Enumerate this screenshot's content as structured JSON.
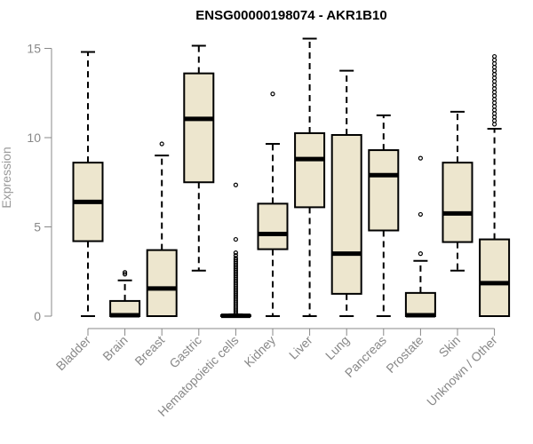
{
  "chart_data": {
    "type": "boxplot",
    "title": "ENSG00000198074 - AKR1B10",
    "xlabel": "",
    "ylabel": "Expression",
    "ylim": [
      0,
      15.5
    ],
    "yticks": [
      0,
      5,
      10,
      15
    ],
    "grid": false,
    "colors": {
      "box_fill": "#EDE6CE",
      "box_stroke": "#000000",
      "median": "#000000",
      "axis_text": "#888888"
    },
    "categories": [
      "Bladder",
      "Brain",
      "Breast",
      "Gastric",
      "Hematopoietic cells",
      "Kidney",
      "Liver",
      "Lung",
      "Pancreas",
      "Prostate",
      "Skin",
      "Unknown / Other"
    ],
    "boxes": [
      {
        "category": "Bladder",
        "whisker_low": 0,
        "q1": 4.2,
        "median": 6.4,
        "q3": 8.6,
        "whisker_high": 14.8,
        "outliers": []
      },
      {
        "category": "Brain",
        "whisker_low": 0,
        "q1": 0,
        "median": 0.05,
        "q3": 0.85,
        "whisker_high": 2.0,
        "outliers": [
          2.35,
          2.45
        ]
      },
      {
        "category": "Breast",
        "whisker_low": 0,
        "q1": 0,
        "median": 1.55,
        "q3": 3.7,
        "whisker_high": 9.0,
        "outliers": [
          9.65
        ]
      },
      {
        "category": "Gastric",
        "whisker_low": 2.55,
        "q1": 7.5,
        "median": 11.05,
        "q3": 13.6,
        "whisker_high": 15.15,
        "outliers": []
      },
      {
        "category": "Hematopoietic cells",
        "whisker_low": 0,
        "q1": 0,
        "median": 0.02,
        "q3": 0.05,
        "whisker_high": 0.1,
        "outliers": [
          0.15,
          0.25,
          0.35,
          0.45,
          0.55,
          0.65,
          0.75,
          0.85,
          0.95,
          1.05,
          1.15,
          1.25,
          1.35,
          1.45,
          1.55,
          1.65,
          1.75,
          1.85,
          1.95,
          2.05,
          2.15,
          2.25,
          2.35,
          2.45,
          2.55,
          2.65,
          2.75,
          2.85,
          2.95,
          3.05,
          3.15,
          3.25,
          3.4,
          3.55,
          4.3,
          7.35
        ]
      },
      {
        "category": "Kidney",
        "whisker_low": 0,
        "q1": 3.75,
        "median": 4.6,
        "q3": 6.3,
        "whisker_high": 9.65,
        "outliers": [
          12.45
        ]
      },
      {
        "category": "Liver",
        "whisker_low": 0,
        "q1": 6.1,
        "median": 8.8,
        "q3": 10.25,
        "whisker_high": 15.55,
        "outliers": []
      },
      {
        "category": "Lung",
        "whisker_low": 0,
        "q1": 1.25,
        "median": 3.5,
        "q3": 10.15,
        "whisker_high": 13.75,
        "outliers": []
      },
      {
        "category": "Pancreas",
        "whisker_low": 0,
        "q1": 4.8,
        "median": 7.9,
        "q3": 9.3,
        "whisker_high": 11.25,
        "outliers": []
      },
      {
        "category": "Prostate",
        "whisker_low": 0,
        "q1": 0,
        "median": 0.05,
        "q3": 1.3,
        "whisker_high": 3.1,
        "outliers": [
          3.5,
          5.7,
          8.85
        ]
      },
      {
        "category": "Skin",
        "whisker_low": 2.55,
        "q1": 4.15,
        "median": 5.75,
        "q3": 8.6,
        "whisker_high": 11.45,
        "outliers": []
      },
      {
        "category": "Unknown / Other",
        "whisker_low": 0,
        "q1": 0,
        "median": 1.85,
        "q3": 4.3,
        "whisker_high": 10.5,
        "outliers": [
          10.75,
          10.95,
          11.15,
          11.35,
          11.55,
          11.75,
          11.95,
          12.15,
          12.35,
          12.55,
          12.75,
          12.95,
          13.15,
          13.35,
          13.55,
          13.75,
          13.95,
          14.15,
          14.35,
          14.55
        ]
      }
    ]
  }
}
